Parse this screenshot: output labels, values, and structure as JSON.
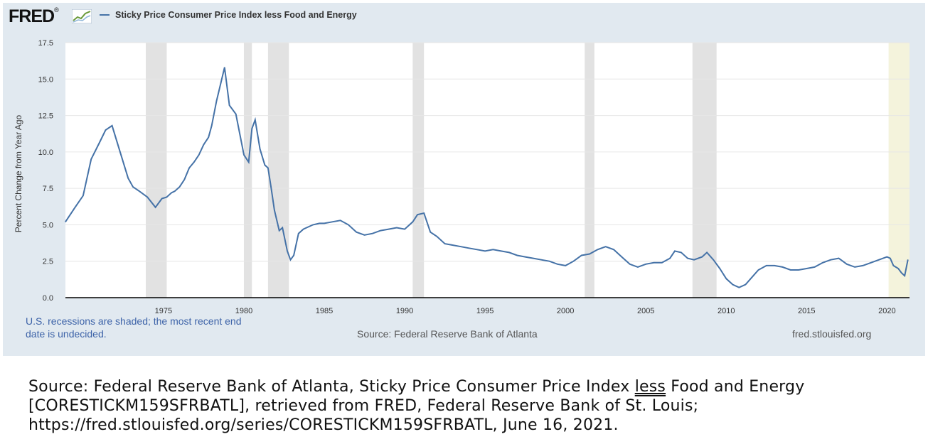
{
  "header": {
    "logo_text": "FRED",
    "logo_suffix": "®",
    "legend_label": "Sticky Price Consumer Price Index less Food and Energy",
    "series_color": "#4572a7"
  },
  "footer": {
    "recession_note": "U.S. recessions are shaded; the most recent end date is undecided.",
    "source": "Source: Federal Reserve Bank of Atlanta",
    "site": "fred.stlouisfed.org"
  },
  "caption": {
    "line1_prefix": "Source: Federal Reserve Bank of Atlanta, Sticky Price Consumer Price Index ",
    "line1_underlined": "less",
    "line1_suffix": " Food and Energy",
    "line2": "[CORESTICKM159SFRBATL], retrieved from FRED, Federal Reserve Bank of St. Louis;",
    "line3": "https://fred.stlouisfed.org/series/CORESTICKM159SFRBATL, June 16, 2021."
  },
  "chart_data": {
    "type": "line",
    "ylabel": "Percent Change from Year Ago",
    "xlim": [
      1968.9,
      2021.4
    ],
    "ylim": [
      0,
      17.5
    ],
    "yticks": [
      "0.0",
      "2.5",
      "5.0",
      "7.5",
      "10.0",
      "12.5",
      "15.0",
      "17.5"
    ],
    "xticks": [
      "1975",
      "1980",
      "1985",
      "1990",
      "1995",
      "2000",
      "2005",
      "2010",
      "2015",
      "2020"
    ],
    "grid": "horizontal",
    "recessions": [
      [
        1973.9,
        1975.2
      ],
      [
        1980.0,
        1980.5
      ],
      [
        1981.5,
        1982.8
      ],
      [
        1990.5,
        1991.2
      ],
      [
        2001.2,
        2001.8
      ],
      [
        2007.9,
        2009.4
      ],
      [
        2020.1,
        2021.4
      ]
    ],
    "recession_colors": {
      "past": "#e2e2e2",
      "current": "#f4f3dc"
    },
    "series": [
      {
        "name": "Sticky Price Consumer Price Index less Food and Energy",
        "x": [
          1968.9,
          1969.5,
          1970.0,
          1970.5,
          1971.0,
          1971.4,
          1971.8,
          1972.3,
          1972.8,
          1973.1,
          1973.5,
          1974.0,
          1974.5,
          1974.9,
          1975.2,
          1975.5,
          1975.7,
          1976.0,
          1976.3,
          1976.6,
          1976.9,
          1977.2,
          1977.5,
          1977.8,
          1978.0,
          1978.3,
          1978.8,
          1979.1,
          1979.5,
          1980.0,
          1980.3,
          1980.5,
          1980.7,
          1981.0,
          1981.3,
          1981.5,
          1981.7,
          1981.9,
          1982.2,
          1982.4,
          1982.7,
          1982.9,
          1983.1,
          1983.4,
          1983.7,
          1983.9,
          1984.3,
          1984.7,
          1985.0,
          1985.5,
          1986.0,
          1986.5,
          1987.0,
          1987.5,
          1988.0,
          1988.5,
          1989.0,
          1989.5,
          1990.0,
          1990.5,
          1990.8,
          1991.2,
          1991.6,
          1992.0,
          1992.5,
          1993.0,
          1993.5,
          1994.0,
          1994.5,
          1995.0,
          1995.5,
          1996.0,
          1996.5,
          1997.0,
          1997.5,
          1998.0,
          1998.5,
          1999.0,
          1999.5,
          2000.0,
          2000.5,
          2001.0,
          2001.5,
          2002.0,
          2002.5,
          2003.0,
          2003.5,
          2004.0,
          2004.5,
          2005.0,
          2005.5,
          2006.0,
          2006.5,
          2006.8,
          2007.2,
          2007.6,
          2008.0,
          2008.5,
          2008.8,
          2009.2,
          2009.6,
          2010.0,
          2010.4,
          2010.8,
          2011.2,
          2011.6,
          2012.0,
          2012.5,
          2013.0,
          2013.5,
          2014.0,
          2014.5,
          2015.0,
          2015.5,
          2016.0,
          2016.5,
          2017.0,
          2017.5,
          2018.0,
          2018.5,
          2019.0,
          2019.5,
          2020.0,
          2020.2,
          2020.4,
          2020.7,
          2020.9,
          2021.1,
          2021.3
        ],
        "values": [
          5.2,
          6.2,
          7.0,
          9.5,
          10.6,
          11.5,
          11.8,
          10.0,
          8.2,
          7.6,
          7.3,
          6.9,
          6.2,
          6.8,
          6.9,
          7.2,
          7.3,
          7.6,
          8.1,
          8.9,
          9.3,
          9.8,
          10.5,
          11.0,
          11.8,
          13.5,
          15.8,
          13.2,
          12.6,
          9.8,
          9.3,
          11.6,
          12.2,
          10.2,
          9.1,
          8.9,
          7.5,
          6.0,
          4.6,
          4.8,
          3.2,
          2.6,
          2.9,
          4.4,
          4.7,
          4.8,
          5.0,
          5.1,
          5.1,
          5.2,
          5.3,
          5.0,
          4.5,
          4.3,
          4.4,
          4.6,
          4.7,
          4.8,
          4.7,
          5.2,
          5.7,
          5.8,
          4.5,
          4.2,
          3.7,
          3.6,
          3.5,
          3.4,
          3.3,
          3.2,
          3.3,
          3.2,
          3.1,
          2.9,
          2.8,
          2.7,
          2.6,
          2.5,
          2.3,
          2.2,
          2.5,
          2.9,
          3.0,
          3.3,
          3.5,
          3.3,
          2.8,
          2.3,
          2.1,
          2.3,
          2.4,
          2.4,
          2.7,
          3.2,
          3.1,
          2.7,
          2.6,
          2.8,
          3.1,
          2.6,
          2.0,
          1.3,
          0.9,
          0.7,
          0.9,
          1.4,
          1.9,
          2.2,
          2.2,
          2.1,
          1.9,
          1.9,
          2.0,
          2.1,
          2.4,
          2.6,
          2.7,
          2.3,
          2.1,
          2.2,
          2.4,
          2.6,
          2.8,
          2.7,
          2.2,
          2.0,
          1.7,
          1.5,
          2.6
        ]
      }
    ]
  }
}
